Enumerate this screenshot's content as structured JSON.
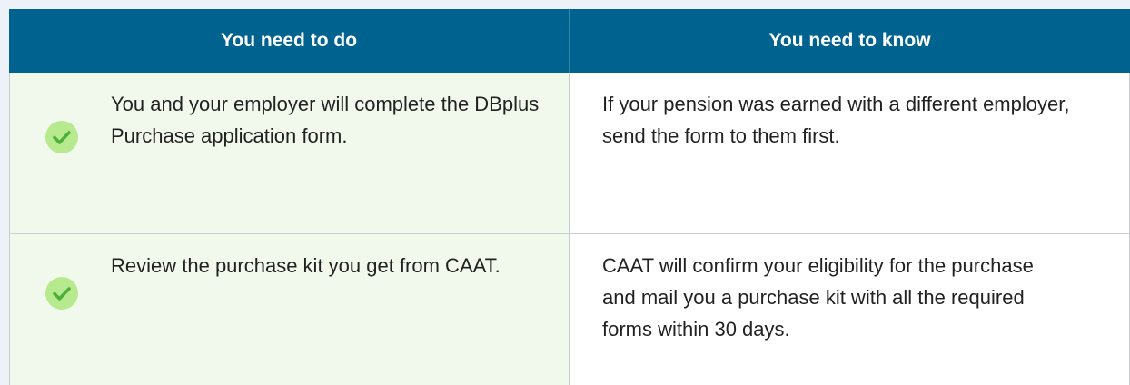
{
  "table": {
    "header": [
      "You need to do",
      "You need to know"
    ],
    "rows": [
      [
        "You and your employer will complete the DBplus Purchase application form.",
        "If your pension was earned with a different employer, send the form to them first."
      ],
      [
        "Review the purchase kit you get from CAAT.",
        "CAAT will confirm your eligibility for the purchase and mail you a purchase kit with all the required forms within 30 days."
      ]
    ]
  }
}
